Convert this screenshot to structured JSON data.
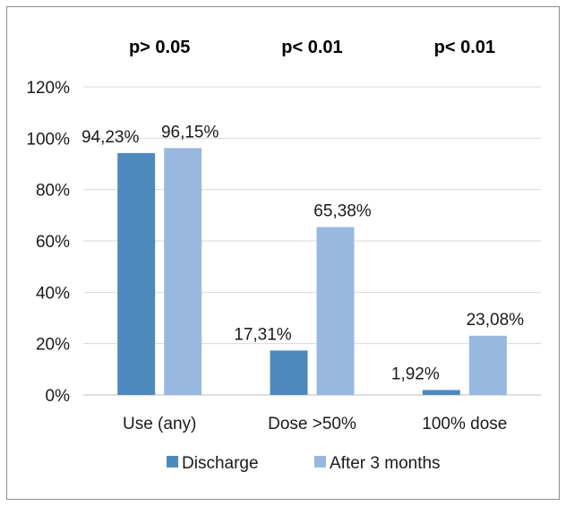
{
  "chart_data": {
    "type": "bar",
    "categories": [
      "Use (any)",
      "Dose >50%",
      "100% dose"
    ],
    "series": [
      {
        "name": "Discharge",
        "values": [
          94.23,
          17.31,
          1.92
        ],
        "labels": [
          "94,23%",
          "17,31%",
          "1,92%"
        ],
        "color": "#4e89bd"
      },
      {
        "name": "After 3 months",
        "values": [
          96.15,
          65.38,
          23.08
        ],
        "labels": [
          "96,15%",
          "65,38%",
          "23,08%"
        ],
        "color": "#98b8df"
      }
    ],
    "p_values": [
      "p> 0.05",
      "p< 0.01",
      "p< 0.01"
    ],
    "yticks": [
      "0%",
      "20%",
      "40%",
      "60%",
      "80%",
      "100%",
      "120%"
    ],
    "ylim": [
      0,
      120
    ],
    "grid": true,
    "legend": "bottom"
  }
}
